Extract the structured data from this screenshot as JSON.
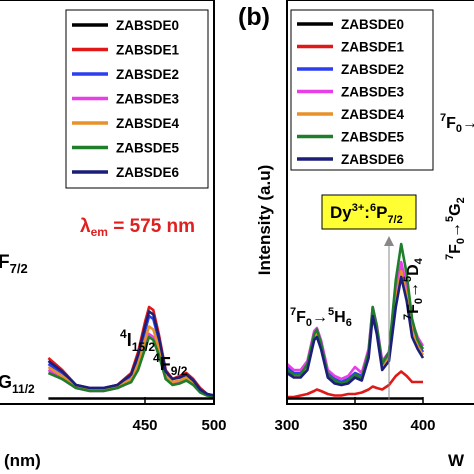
{
  "chart_data": [
    {
      "panel": "left",
      "type": "line",
      "title": "",
      "xlabel_partial": "(nm)",
      "ylabel": "",
      "xlim": [
        350,
        500
      ],
      "ylim": [
        0,
        1
      ],
      "x_ticks": [
        "450",
        "500"
      ],
      "grid": false,
      "legend_position": "top-right",
      "excitation_label": {
        "lambda": "λ",
        "sub": "em",
        "text": " = 575 nm",
        "color": "#e02020"
      },
      "annotations": {
        "f72": {
          "base": "F",
          "sub": "7/2"
        },
        "g112": {
          "base": "G",
          "sub": "11/2"
        },
        "i152": {
          "pre": "4",
          "base": "I",
          "sub": "15/2"
        },
        "f92": {
          "pre": "4",
          "base": "F",
          "sub": "9/2"
        }
      },
      "x": [
        380,
        390,
        400,
        410,
        420,
        430,
        440,
        445,
        450,
        453,
        456,
        460,
        465,
        470,
        475,
        480,
        485,
        490,
        495,
        500
      ],
      "series": [
        {
          "name": "ZABSDE0",
          "color": "#000000",
          "values": [
            0.005,
            0.005,
            0.005,
            0.005,
            0.005,
            0.005,
            0.005,
            0.005,
            0.005,
            0.005,
            0.005,
            0.005,
            0.005,
            0.005,
            0.005,
            0.005,
            0.005,
            0.005,
            0.005,
            0.005
          ]
        },
        {
          "name": "ZABSDE1",
          "color": "#e01818",
          "values": [
            0.14,
            0.1,
            0.05,
            0.04,
            0.04,
            0.05,
            0.09,
            0.16,
            0.26,
            0.31,
            0.3,
            0.22,
            0.1,
            0.07,
            0.08,
            0.09,
            0.07,
            0.04,
            0.02,
            0.015
          ]
        },
        {
          "name": "ZABSDE2",
          "color": "#2b3ff0",
          "values": [
            0.12,
            0.09,
            0.05,
            0.04,
            0.04,
            0.05,
            0.08,
            0.14,
            0.23,
            0.28,
            0.27,
            0.2,
            0.09,
            0.07,
            0.075,
            0.085,
            0.065,
            0.035,
            0.02,
            0.015
          ]
        },
        {
          "name": "ZABSDE3",
          "color": "#e83ee8",
          "values": [
            0.1,
            0.07,
            0.04,
            0.03,
            0.03,
            0.04,
            0.06,
            0.11,
            0.18,
            0.22,
            0.21,
            0.16,
            0.07,
            0.055,
            0.06,
            0.07,
            0.055,
            0.03,
            0.015,
            0.01
          ]
        },
        {
          "name": "ZABSDE4",
          "color": "#e8902a",
          "values": [
            0.11,
            0.08,
            0.045,
            0.035,
            0.035,
            0.045,
            0.07,
            0.12,
            0.2,
            0.245,
            0.235,
            0.175,
            0.08,
            0.06,
            0.065,
            0.075,
            0.06,
            0.03,
            0.015,
            0.01
          ]
        },
        {
          "name": "ZABSDE5",
          "color": "#1e7e2a",
          "values": [
            0.09,
            0.07,
            0.04,
            0.03,
            0.03,
            0.04,
            0.06,
            0.1,
            0.17,
            0.21,
            0.2,
            0.15,
            0.07,
            0.05,
            0.055,
            0.065,
            0.05,
            0.025,
            0.015,
            0.01
          ]
        },
        {
          "name": "ZABSDE6",
          "color": "#1b1f7a",
          "values": [
            0.13,
            0.095,
            0.05,
            0.04,
            0.04,
            0.05,
            0.085,
            0.15,
            0.245,
            0.295,
            0.285,
            0.21,
            0.095,
            0.07,
            0.075,
            0.085,
            0.065,
            0.035,
            0.02,
            0.015
          ]
        }
      ]
    },
    {
      "panel": "right",
      "panel_label": "(b)",
      "type": "line",
      "title": "",
      "xlabel_partial": "W",
      "ylabel": "Intensity (a.u)",
      "xlim": [
        300,
        400
      ],
      "ylim": [
        0,
        1
      ],
      "x_ticks": [
        "300",
        "350",
        "400"
      ],
      "grid": false,
      "legend_position": "top-left",
      "transition_box": {
        "text": "Dy",
        "sup": "3+",
        "mid": ":",
        "sup2": "6",
        "base": "P",
        "sub": "7/2",
        "background": "#ffff33"
      },
      "annotations": {
        "h6": {
          "p1": "7",
          "b1": "F",
          "s1": "0",
          "arrow": "→",
          "p2": "5",
          "b2": "H",
          "s2": "6"
        },
        "d4": {
          "p1": "7",
          "b1": "F",
          "s1": "0",
          "arrow": "→",
          "p2": "5",
          "b2": "D",
          "s2": "4"
        },
        "g2": {
          "p1": "7",
          "b1": "F",
          "s1": "0",
          "arrow": "→",
          "p2": "5",
          "b2": "G",
          "s2": "2"
        },
        "f0_partial": {
          "p1": "7",
          "b1": "F",
          "s1": "0",
          "arrow": "→"
        }
      },
      "x": [
        300,
        305,
        310,
        315,
        320,
        322,
        325,
        330,
        335,
        340,
        345,
        350,
        355,
        360,
        363,
        366,
        370,
        375,
        380,
        384,
        388,
        392,
        396,
        400
      ],
      "series": [
        {
          "name": "ZABSDE0",
          "color": "#000000",
          "values": [
            0.005,
            0.005,
            0.005,
            0.005,
            0.005,
            0.005,
            0.005,
            0.005,
            0.005,
            0.005,
            0.005,
            0.005,
            0.005,
            0.005,
            0.005,
            0.005,
            0.005,
            0.005,
            0.005,
            0.005,
            0.005,
            0.005,
            0.005,
            0.005
          ]
        },
        {
          "name": "ZABSDE1",
          "color": "#e01818",
          "values": [
            0.01,
            0.01,
            0.015,
            0.02,
            0.03,
            0.035,
            0.03,
            0.02,
            0.015,
            0.015,
            0.02,
            0.02,
            0.025,
            0.035,
            0.045,
            0.04,
            0.035,
            0.05,
            0.08,
            0.095,
            0.08,
            0.06,
            0.06,
            0.06
          ]
        },
        {
          "name": "ZABSDE2",
          "color": "#2b3ff0",
          "values": [
            0.11,
            0.09,
            0.09,
            0.12,
            0.22,
            0.23,
            0.19,
            0.09,
            0.07,
            0.06,
            0.07,
            0.09,
            0.08,
            0.16,
            0.3,
            0.24,
            0.12,
            0.15,
            0.34,
            0.44,
            0.36,
            0.24,
            0.19,
            0.16
          ]
        },
        {
          "name": "ZABSDE3",
          "color": "#e83ee8",
          "values": [
            0.12,
            0.1,
            0.1,
            0.13,
            0.23,
            0.24,
            0.2,
            0.1,
            0.08,
            0.07,
            0.08,
            0.11,
            0.09,
            0.17,
            0.31,
            0.25,
            0.13,
            0.16,
            0.36,
            0.46,
            0.38,
            0.26,
            0.21,
            0.18
          ]
        },
        {
          "name": "ZABSDE4",
          "color": "#e8902a",
          "values": [
            0.1,
            0.08,
            0.08,
            0.11,
            0.21,
            0.22,
            0.18,
            0.08,
            0.06,
            0.05,
            0.06,
            0.08,
            0.07,
            0.15,
            0.29,
            0.23,
            0.11,
            0.14,
            0.33,
            0.43,
            0.35,
            0.23,
            0.18,
            0.15
          ]
        },
        {
          "name": "ZABSDE5",
          "color": "#1e7e2a",
          "values": [
            0.1,
            0.085,
            0.085,
            0.12,
            0.22,
            0.235,
            0.19,
            0.085,
            0.065,
            0.055,
            0.065,
            0.085,
            0.075,
            0.16,
            0.31,
            0.245,
            0.12,
            0.16,
            0.4,
            0.52,
            0.42,
            0.27,
            0.2,
            0.17
          ]
        },
        {
          "name": "ZABSDE6",
          "color": "#1b1f7a",
          "values": [
            0.09,
            0.075,
            0.075,
            0.1,
            0.2,
            0.21,
            0.17,
            0.075,
            0.055,
            0.05,
            0.055,
            0.075,
            0.065,
            0.14,
            0.28,
            0.22,
            0.1,
            0.13,
            0.31,
            0.41,
            0.33,
            0.21,
            0.17,
            0.14
          ]
        }
      ]
    }
  ]
}
